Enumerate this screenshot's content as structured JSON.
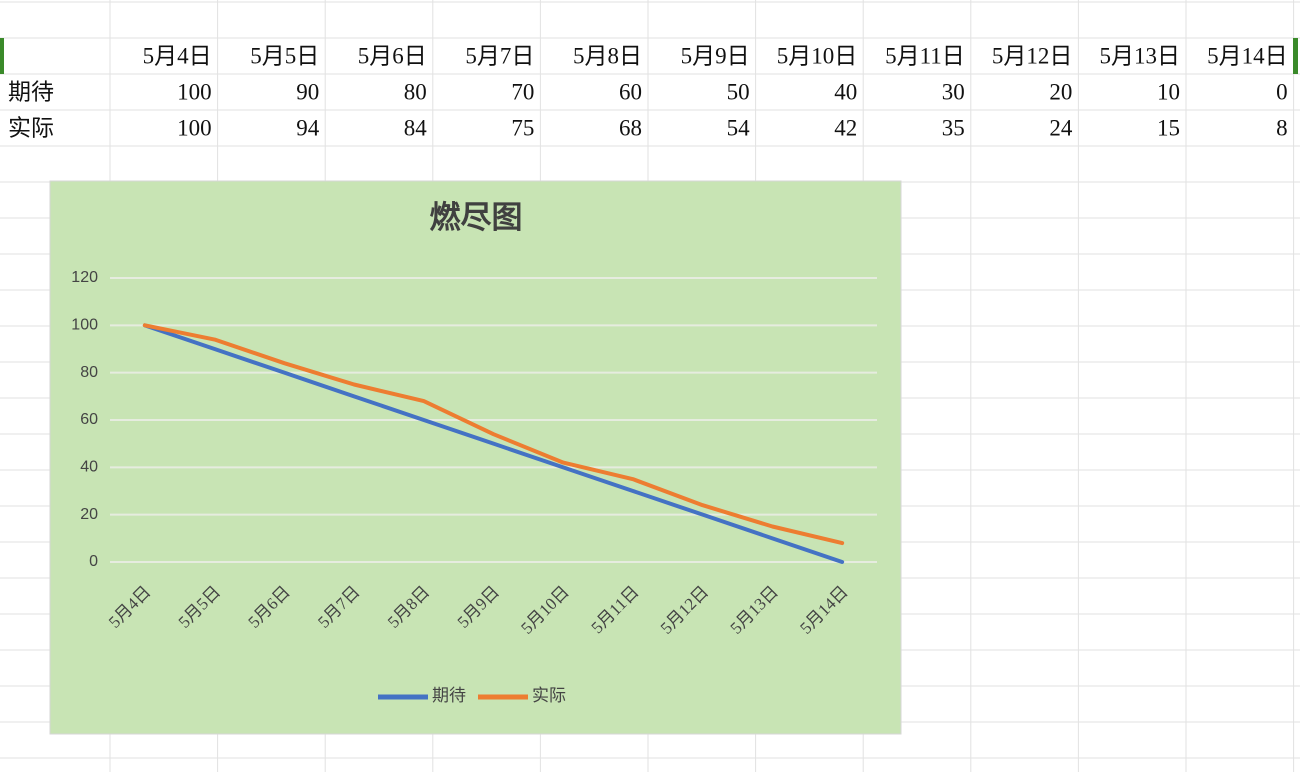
{
  "table": {
    "header": [
      "5月4日",
      "5月5日",
      "5月6日",
      "5月7日",
      "5月8日",
      "5月9日",
      "5月10日",
      "5月11日",
      "5月12日",
      "5月13日",
      "5月14日"
    ],
    "rows": [
      [
        "期待",
        100,
        90,
        80,
        70,
        60,
        50,
        40,
        30,
        20,
        10,
        0
      ],
      [
        "实际",
        100,
        94,
        84,
        75,
        68,
        54,
        42,
        35,
        24,
        15,
        8
      ]
    ]
  },
  "chart_data": {
    "type": "line",
    "title": "燃尽图",
    "categories": [
      "5月4日",
      "5月5日",
      "5月6日",
      "5月7日",
      "5月8日",
      "5月9日",
      "5月10日",
      "5月11日",
      "5月12日",
      "5月13日",
      "5月14日"
    ],
    "series": [
      {
        "name": "期待",
        "color": "#4472c4",
        "values": [
          100,
          90,
          80,
          70,
          60,
          50,
          40,
          30,
          20,
          10,
          0
        ]
      },
      {
        "name": "实际",
        "color": "#ed7d31",
        "values": [
          100,
          94,
          84,
          75,
          68,
          54,
          42,
          35,
          24,
          15,
          8
        ]
      }
    ],
    "ylim": [
      0,
      120
    ],
    "yticks": [
      0,
      20,
      40,
      60,
      80,
      100,
      120
    ],
    "grid": true,
    "legend": "bottom"
  }
}
